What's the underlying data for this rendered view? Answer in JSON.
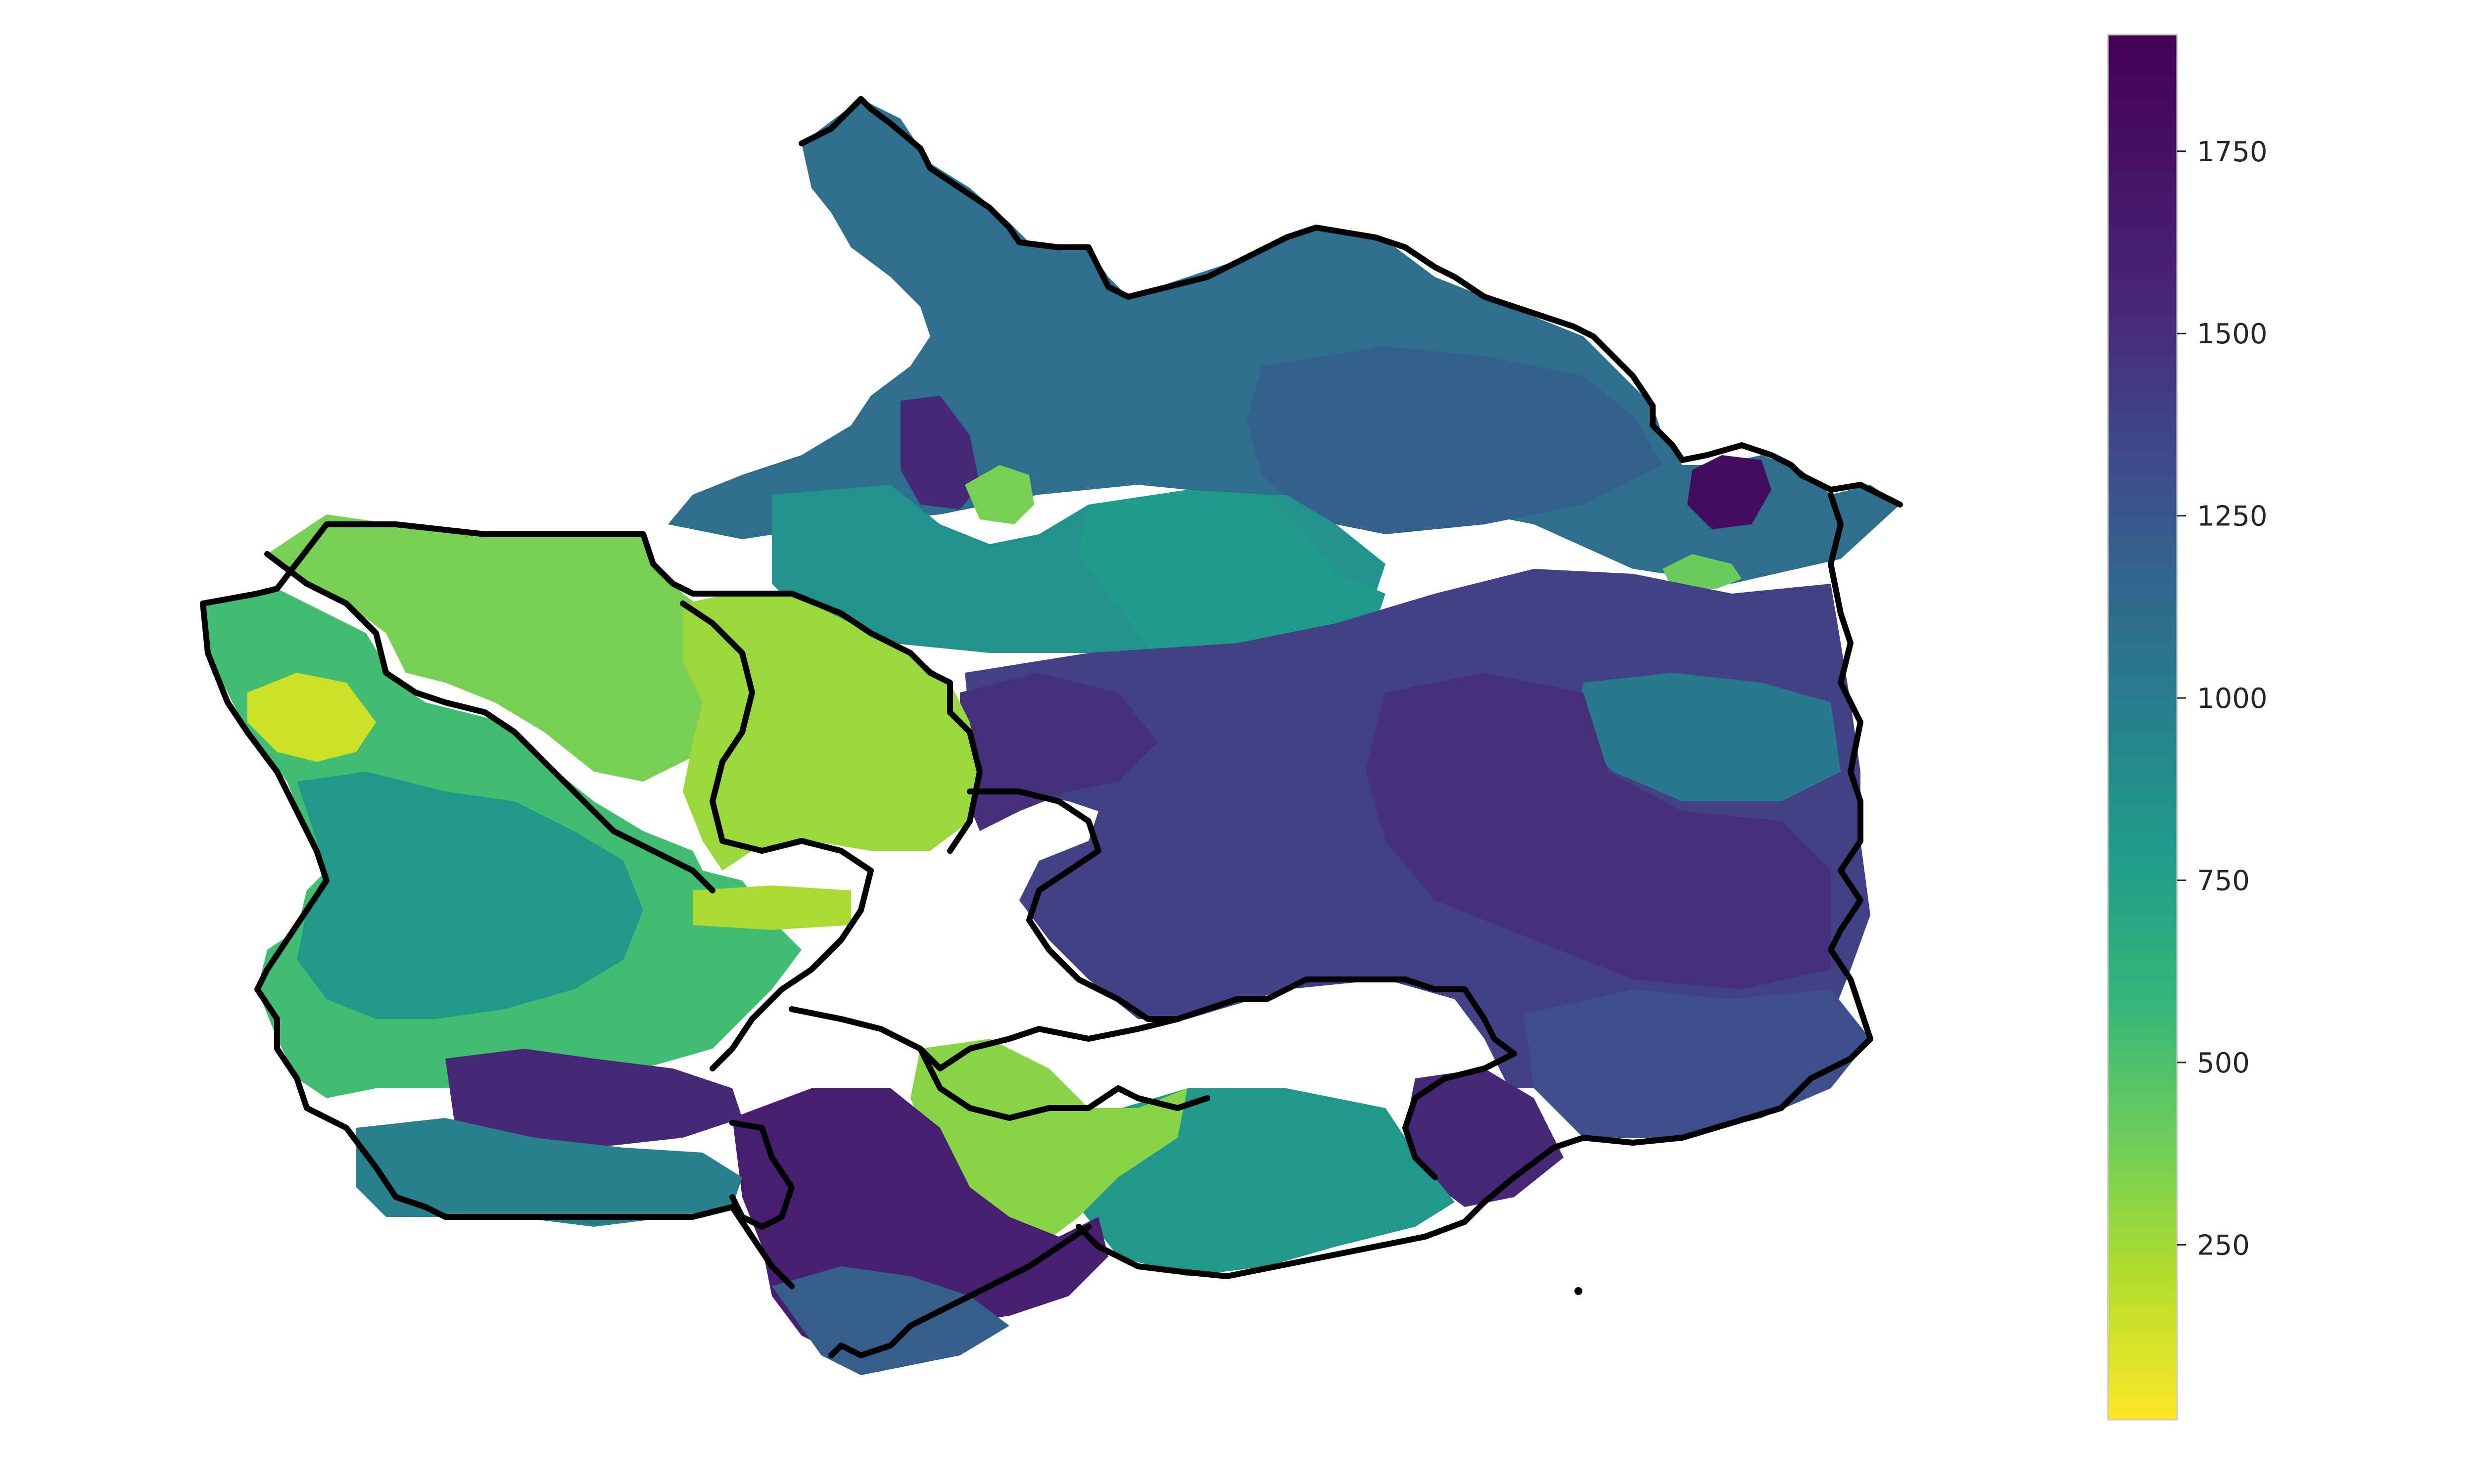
{
  "chart_data": {
    "type": "choropleth",
    "colormap": "viridis",
    "colormap_reversed": true,
    "colorbar": {
      "range": [
        10,
        1910
      ],
      "ticks": [
        250,
        500,
        750,
        1000,
        1250,
        1500,
        1750
      ],
      "tick_labels": [
        "250",
        "500",
        "750",
        "1000",
        "1250",
        "1500",
        "1750"
      ],
      "orientation": "vertical",
      "position": "right"
    },
    "areas": [
      {
        "id": "north-lobe",
        "value": 1220
      },
      {
        "id": "north-small-purple",
        "value": 1700
      },
      {
        "id": "north-green-patch",
        "value": 400
      },
      {
        "id": "central-north-teal",
        "value": 950
      },
      {
        "id": "central-teal-valley",
        "value": 880
      },
      {
        "id": "east-upper-blue",
        "value": 1330
      },
      {
        "id": "east-purple-spot",
        "value": 1850
      },
      {
        "id": "east-green-spot",
        "value": 450
      },
      {
        "id": "east-mid-indigo",
        "value": 1550
      },
      {
        "id": "east-teal-patch",
        "value": 1150
      },
      {
        "id": "east-lower-purple",
        "value": 1650
      },
      {
        "id": "east-coast-blue",
        "value": 1450
      },
      {
        "id": "south-east-purple",
        "value": 1700
      },
      {
        "id": "south-teal",
        "value": 900
      },
      {
        "id": "south-urban-mix",
        "value": 350
      },
      {
        "id": "south-west-purple",
        "value": 1750
      },
      {
        "id": "south-west-blue",
        "value": 1350
      },
      {
        "id": "central-purple",
        "value": 1650
      },
      {
        "id": "west-yellow-green",
        "value": 400
      },
      {
        "id": "west-green",
        "value": 600
      },
      {
        "id": "west-teal",
        "value": 900
      },
      {
        "id": "west-yellow-urban",
        "value": 150
      },
      {
        "id": "west-band-yellow",
        "value": 250
      },
      {
        "id": "west-south-purple",
        "value": 1700
      },
      {
        "id": "west-south-teal",
        "value": 1100
      },
      {
        "id": "mid-west-lime",
        "value": 300
      }
    ]
  }
}
